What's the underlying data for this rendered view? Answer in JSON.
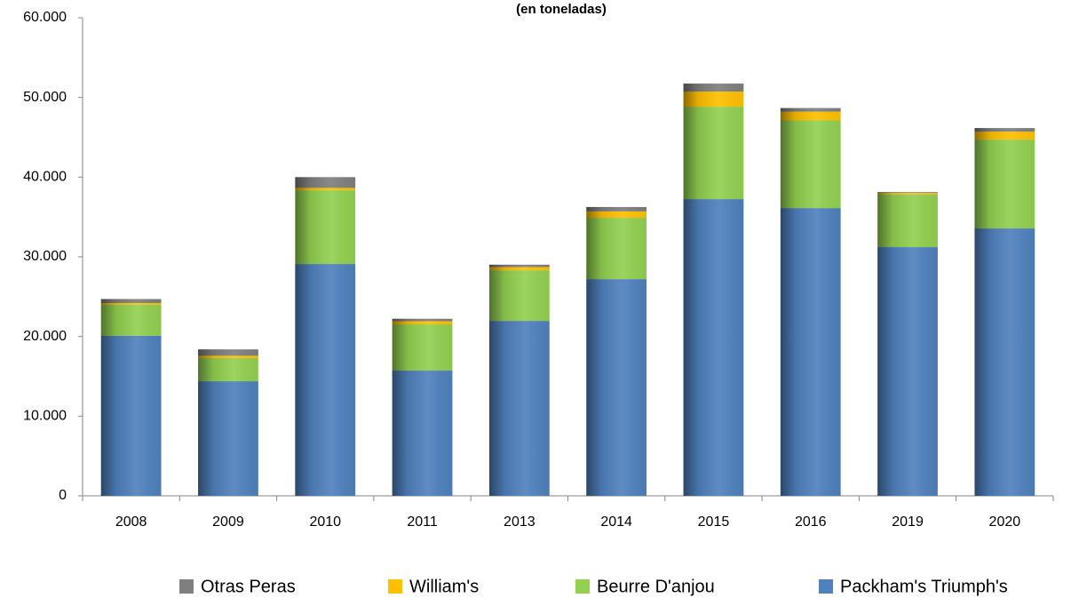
{
  "chart_data": {
    "type": "bar",
    "stacked": true,
    "title": "(en toneladas)",
    "categories": [
      "2008",
      "2009",
      "2010",
      "2011",
      "2013",
      "2014",
      "2015",
      "2016",
      "2019",
      "2020"
    ],
    "series": [
      {
        "name": "Packham's Triumph's",
        "color": "#4f81bd",
        "values": [
          20100,
          14380,
          29100,
          15720,
          21960,
          27200,
          37240,
          36120,
          31220,
          33560
        ]
      },
      {
        "name": "Beurre D'anjou",
        "color": "#92d050",
        "values": [
          3900,
          2900,
          9250,
          5800,
          6350,
          7700,
          11600,
          11000,
          6600,
          11150
        ]
      },
      {
        "name": "William's",
        "color": "#ffc000",
        "values": [
          200,
          300,
          300,
          400,
          400,
          800,
          1900,
          1100,
          200,
          1000
        ]
      },
      {
        "name": "Otras Peras",
        "color": "#7f7f7f",
        "values": [
          500,
          800,
          1350,
          300,
          300,
          550,
          1000,
          450,
          100,
          450
        ]
      }
    ],
    "ylim": [
      0,
      60000
    ],
    "yticks": [
      0,
      {
        "value": 10000,
        "label": "10.000"
      },
      {
        "value": 20000,
        "label": "20.000"
      },
      {
        "value": 30000,
        "label": "30.000"
      },
      {
        "value": 40000,
        "label": "40.000"
      },
      {
        "value": 50000,
        "label": "50.000"
      },
      {
        "value": 60000,
        "label": "60.000"
      }
    ],
    "legend": "bottom"
  }
}
